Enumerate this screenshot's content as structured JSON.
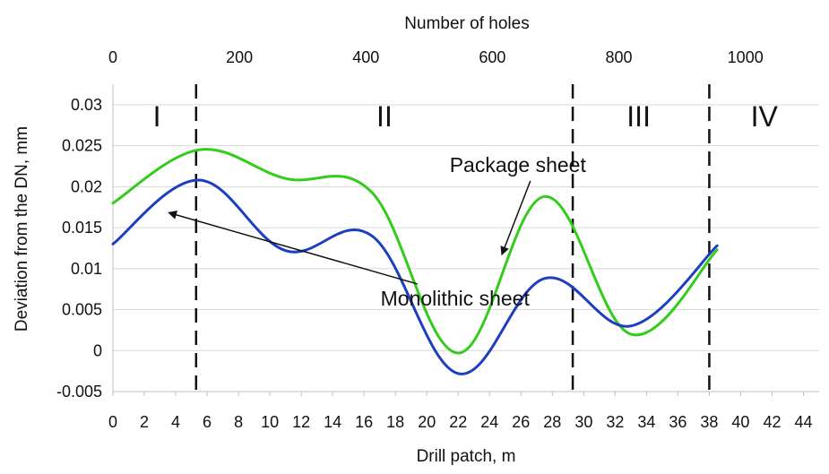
{
  "chart_data": {
    "type": "line",
    "xlabel": "Drill patch, m",
    "ylabel": "Deviation from the DN, mm",
    "x2label": "Number of holes",
    "xlim": [
      0,
      45
    ],
    "ylim": [
      -0.005,
      0.0325
    ],
    "x_ticks": [
      0,
      2,
      4,
      6,
      8,
      10,
      12,
      14,
      16,
      18,
      20,
      22,
      24,
      26,
      28,
      30,
      32,
      34,
      36,
      38,
      40,
      42,
      44
    ],
    "y_ticks": [
      -0.005,
      0,
      0.005,
      0.01,
      0.015,
      0.02,
      0.025,
      0.03
    ],
    "y_tick_labels": [
      "-0.005",
      "0",
      "0.005",
      "0.01",
      "0.015",
      "0.02",
      "0.025",
      "0.03"
    ],
    "x2_ticks": [
      0,
      200,
      400,
      600,
      800,
      1000
    ],
    "x2_scale": {
      "x_at_0": 0,
      "x_at_1000": 40.3
    },
    "grid": "horizontal",
    "region_boundaries": [
      5.3,
      29.3,
      38
    ],
    "regions": [
      {
        "label": "I",
        "x": 2.8
      },
      {
        "label": "II",
        "x": 17.3
      },
      {
        "label": "III",
        "x": 33.5
      },
      {
        "label": "IV",
        "x": 41.5
      }
    ],
    "series": [
      {
        "name": "Package sheet",
        "color": "#33cc1a",
        "x": [
          0,
          5.5,
          11,
          16.5,
          22,
          27.5,
          33,
          38.5
        ],
        "y": [
          0.018,
          0.0245,
          0.021,
          0.0193,
          -0.0003,
          0.0188,
          0.002,
          0.0123
        ]
      },
      {
        "name": "Monolithic sheet",
        "color": "#1d3fbf",
        "x": [
          0,
          5.5,
          11,
          16.5,
          22,
          27.5,
          33,
          38.5
        ],
        "y": [
          0.013,
          0.0208,
          0.0122,
          0.014,
          -0.0028,
          0.0088,
          0.003,
          0.0128
        ]
      }
    ],
    "annotations": [
      {
        "text": "Package sheet",
        "x": 25.8,
        "y": 0.0218,
        "arrow_to": [
          24.8,
          0.0118
        ]
      },
      {
        "text": "Monolithic sheet",
        "x": 21.8,
        "y": 0.0055,
        "arrow_to": [
          3.6,
          0.0168
        ]
      }
    ]
  }
}
